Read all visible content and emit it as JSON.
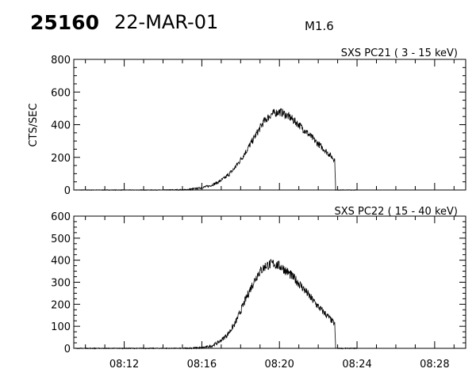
{
  "header": {
    "event_id": "25160",
    "date": "22-MAR-01",
    "flare_class": "M1.6"
  },
  "chart_data": [
    {
      "type": "line",
      "title": "SXS PC21  (  3 - 15 keV)",
      "ylabel": "CTS/SEC",
      "xlabel": "",
      "ylim": [
        0,
        800
      ],
      "yticks": [
        0,
        200,
        400,
        600,
        800
      ],
      "xlim": [
        "08:09:24",
        "08:29:36"
      ],
      "xticks": [
        "08:12",
        "08:16",
        "08:20",
        "08:24",
        "08:28"
      ],
      "x_unit": "time UT (HH:MM:SS)",
      "series": [
        {
          "points": [
            [
              "08:09:30",
              0
            ],
            [
              "08:14:00",
              0
            ],
            [
              "08:15:12",
              2
            ],
            [
              "08:15:48",
              10
            ],
            [
              "08:16:24",
              25
            ],
            [
              "08:16:48",
              45
            ],
            [
              "08:17:12",
              75
            ],
            [
              "08:17:36",
              120
            ],
            [
              "08:18:00",
              185
            ],
            [
              "08:18:24",
              260
            ],
            [
              "08:18:48",
              340
            ],
            [
              "08:19:12",
              420
            ],
            [
              "08:19:36",
              465
            ],
            [
              "08:20:00",
              480
            ],
            [
              "08:20:12",
              470
            ],
            [
              "08:20:36",
              440
            ],
            [
              "08:21:00",
              400
            ],
            [
              "08:21:24",
              355
            ],
            [
              "08:21:48",
              305
            ],
            [
              "08:22:12",
              260
            ],
            [
              "08:22:36",
              215
            ],
            [
              "08:22:51",
              185
            ],
            [
              "08:22:54",
              0
            ],
            [
              "08:24:00",
              0
            ]
          ]
        }
      ]
    },
    {
      "type": "line",
      "title": "SXS PC22  ( 15 - 40 keV)",
      "ylabel": "",
      "xlabel": "",
      "ylim": [
        0,
        600
      ],
      "yticks": [
        0,
        100,
        200,
        300,
        400,
        500,
        600
      ],
      "xlim": [
        "08:09:24",
        "08:29:36"
      ],
      "xticks": [
        "08:12",
        "08:16",
        "08:20",
        "08:24",
        "08:28"
      ],
      "x_unit": "time UT (HH:MM:SS)",
      "series": [
        {
          "points": [
            [
              "08:09:30",
              0
            ],
            [
              "08:15:00",
              0
            ],
            [
              "08:16:00",
              3
            ],
            [
              "08:16:30",
              10
            ],
            [
              "08:16:54",
              30
            ],
            [
              "08:17:18",
              60
            ],
            [
              "08:17:42",
              110
            ],
            [
              "08:18:06",
              190
            ],
            [
              "08:18:30",
              270
            ],
            [
              "08:18:54",
              340
            ],
            [
              "08:19:18",
              375
            ],
            [
              "08:19:42",
              385
            ],
            [
              "08:20:06",
              370
            ],
            [
              "08:20:30",
              340
            ],
            [
              "08:20:54",
              305
            ],
            [
              "08:21:18",
              265
            ],
            [
              "08:21:42",
              220
            ],
            [
              "08:22:06",
              180
            ],
            [
              "08:22:30",
              145
            ],
            [
              "08:22:51",
              110
            ],
            [
              "08:22:54",
              0
            ],
            [
              "08:24:00",
              0
            ]
          ]
        }
      ]
    }
  ]
}
